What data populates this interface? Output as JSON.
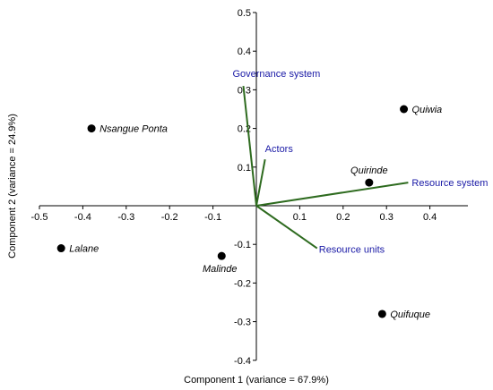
{
  "chart_data": {
    "type": "scatter",
    "subtype": "biplot",
    "xlabel": "Component 1 (variance = 67.9%)",
    "ylabel": "Component 2 (variance  = 24.9%)",
    "xlim": [
      -0.5,
      0.5
    ],
    "ylim": [
      -0.4,
      0.5
    ],
    "x_ticks": [
      "-0.5",
      "-0.4",
      "-0.3",
      "-0.2",
      "-0.1",
      "0.1",
      "0.2",
      "0.3",
      "0.4"
    ],
    "x_tick_values": [
      -0.5,
      -0.4,
      -0.3,
      -0.2,
      -0.1,
      0.1,
      0.2,
      0.3,
      0.4
    ],
    "y_ticks": [
      "0.5",
      "0.4",
      "0.3",
      "0.2",
      "0.1",
      "-0.1",
      "-0.2",
      "-0.3",
      "-0.4"
    ],
    "y_tick_values": [
      0.5,
      0.4,
      0.3,
      0.2,
      0.1,
      -0.1,
      -0.2,
      -0.3,
      -0.4
    ],
    "grid": false,
    "points": [
      {
        "label": "Nsangue Ponta",
        "x": -0.38,
        "y": 0.2
      },
      {
        "label": "Lalane",
        "x": -0.45,
        "y": -0.11
      },
      {
        "label": "Malinde",
        "x": -0.08,
        "y": -0.13
      },
      {
        "label": "Quiwia",
        "x": 0.34,
        "y": 0.25
      },
      {
        "label": "Quirinde",
        "x": 0.26,
        "y": 0.06
      },
      {
        "label": "Quifuque",
        "x": 0.29,
        "y": -0.28
      }
    ],
    "vectors": [
      {
        "label": "Governance system",
        "x": -0.03,
        "y": 0.31
      },
      {
        "label": "Actors",
        "x": 0.02,
        "y": 0.12
      },
      {
        "label": "Resource system",
        "x": 0.35,
        "y": 0.06
      },
      {
        "label": "Resource units",
        "x": 0.14,
        "y": -0.11
      }
    ],
    "point_color": "#000000",
    "vector_color": "#2e6b1f",
    "vector_label_color": "#1a1aa6"
  }
}
